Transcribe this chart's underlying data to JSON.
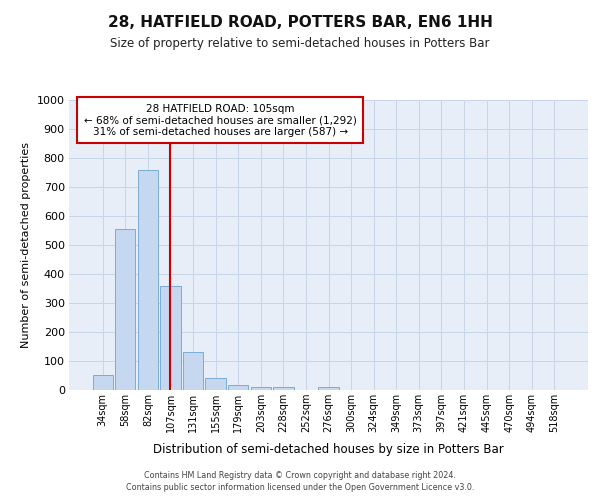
{
  "title": "28, HATFIELD ROAD, POTTERS BAR, EN6 1HH",
  "subtitle": "Size of property relative to semi-detached houses in Potters Bar",
  "xlabel": "Distribution of semi-detached houses by size in Potters Bar",
  "ylabel": "Number of semi-detached properties",
  "bar_labels": [
    "34sqm",
    "58sqm",
    "82sqm",
    "107sqm",
    "131sqm",
    "155sqm",
    "179sqm",
    "203sqm",
    "228sqm",
    "252sqm",
    "276sqm",
    "300sqm",
    "324sqm",
    "349sqm",
    "373sqm",
    "397sqm",
    "421sqm",
    "445sqm",
    "470sqm",
    "494sqm",
    "518sqm"
  ],
  "bar_values": [
    52,
    555,
    757,
    360,
    130,
    40,
    18,
    10,
    10,
    0,
    10,
    0,
    0,
    0,
    0,
    0,
    0,
    0,
    0,
    0,
    0
  ],
  "bar_color": "#c5d8f0",
  "bar_edge_color": "#7aadd4",
  "grid_color": "#c8d4e8",
  "bg_color": "#e8eef8",
  "vline_x": 3.0,
  "vline_color": "#cc0000",
  "ylim": [
    0,
    1000
  ],
  "yticks": [
    0,
    100,
    200,
    300,
    400,
    500,
    600,
    700,
    800,
    900,
    1000
  ],
  "annotation_title": "28 HATFIELD ROAD: 105sqm",
  "annotation_line1": "← 68% of semi-detached houses are smaller (1,292)",
  "annotation_line2": "31% of semi-detached houses are larger (587) →",
  "annotation_box_color": "#ffffff",
  "annotation_box_edge": "#cc0000",
  "footer1": "Contains HM Land Registry data © Crown copyright and database right 2024.",
  "footer2": "Contains public sector information licensed under the Open Government Licence v3.0."
}
